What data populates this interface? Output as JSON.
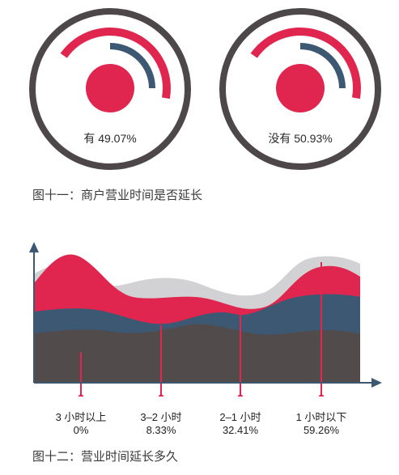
{
  "colors": {
    "red": "#e0264f",
    "navy": "#3d5873",
    "dark": "#514b4c",
    "light": "#d2d2d4",
    "ring": "#4d4749"
  },
  "captions": {
    "figure11": "图十一：商户营业时间是否延长",
    "figure12": "图十二：营业时间延长多久"
  },
  "chart_data": [
    {
      "type": "pie",
      "categories": [
        "有",
        "没有"
      ],
      "values": [
        49.07,
        50.93
      ],
      "value_labels": [
        "有 49.07%",
        "没有 50.93%"
      ],
      "title": "图十一：商户营业时间是否延长"
    },
    {
      "type": "area",
      "categories": [
        "3 小时以上",
        "3–2 小时",
        "2–1 小时",
        "1 小时以下"
      ],
      "values": [
        0,
        8.33,
        32.41,
        59.26
      ],
      "value_labels": [
        "0%",
        "8.33%",
        "32.41%",
        "59.26%"
      ],
      "title": "图十二：营业时间延长多久"
    }
  ]
}
